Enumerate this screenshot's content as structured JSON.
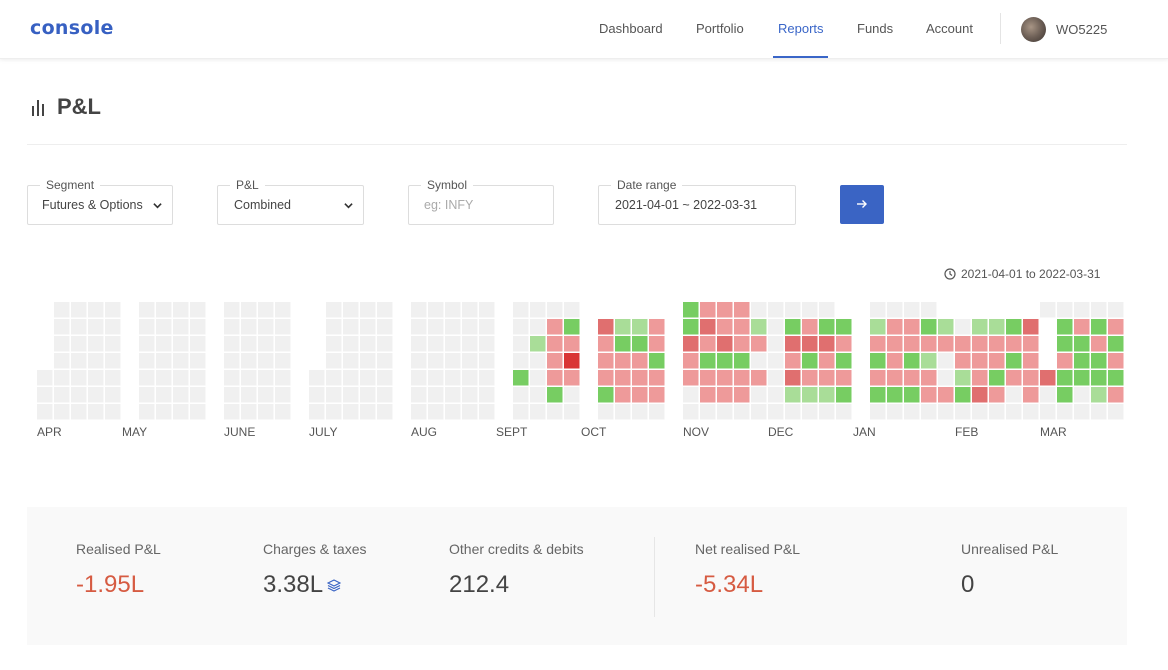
{
  "header": {
    "logo": "console",
    "nav": [
      "Dashboard",
      "Portfolio",
      "Reports",
      "Funds",
      "Account"
    ],
    "active_nav": "Reports",
    "user_id": "WO5225"
  },
  "page": {
    "title": "P&L"
  },
  "filters": {
    "segment": {
      "label": "Segment",
      "value": "Futures & Options"
    },
    "pnl": {
      "label": "P&L",
      "value": "Combined"
    },
    "symbol": {
      "label": "Symbol",
      "placeholder": "eg: INFY"
    },
    "date_range": {
      "label": "Date range",
      "value": "2021-04-01 ~ 2022-03-31"
    }
  },
  "heatmap": {
    "range_text": "2021-04-01 to 2022-03-31",
    "months": [
      "APR",
      "MAY",
      "JUNE",
      "JULY",
      "AUG",
      "SEPT",
      "OCT",
      "NOV",
      "DEC",
      "JAN",
      "FEB",
      "MAR"
    ],
    "colors": {
      "empty": "#f0f0f0",
      "light_green": "#a9dd98",
      "green": "#77cd62",
      "light_red": "#ee9a9a",
      "red": "#e06f6f",
      "dark_red": "#d93535"
    }
  },
  "summary": {
    "realised": {
      "label": "Realised P&L",
      "value": "-1.95L"
    },
    "charges": {
      "label": "Charges & taxes",
      "value": "3.38L"
    },
    "other": {
      "label": "Other credits & debits",
      "value": "212.4"
    },
    "net": {
      "label": "Net realised P&L",
      "value": "-5.34L"
    },
    "unrealised": {
      "label": "Unrealised P&L",
      "value": "0"
    }
  }
}
